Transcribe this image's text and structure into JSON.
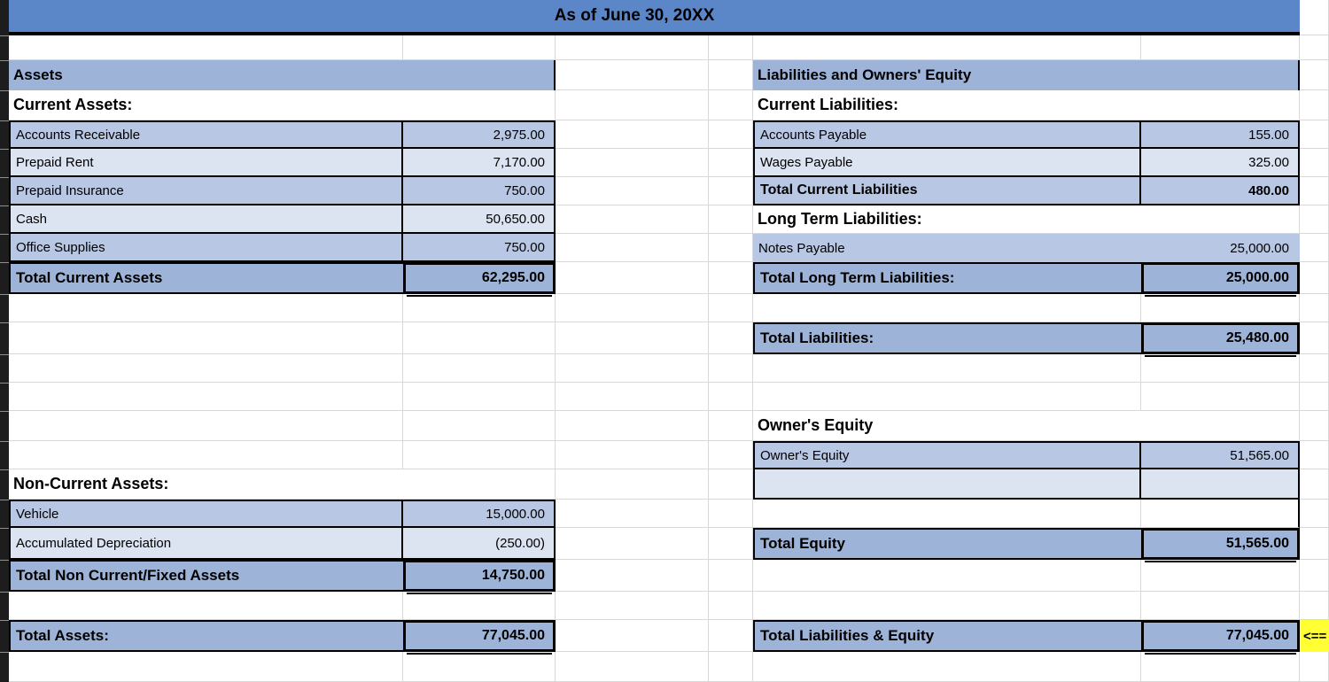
{
  "title": {
    "date_line": "As of June 30, 20XX"
  },
  "assets": {
    "section_header": "Assets",
    "current_header": "Current Assets:",
    "rows": [
      {
        "label": "Accounts Receivable",
        "value": "2,975.00"
      },
      {
        "label": "Prepaid Rent",
        "value": "7,170.00"
      },
      {
        "label": "Prepaid Insurance",
        "value": "750.00"
      },
      {
        "label": "Cash",
        "value": "50,650.00"
      },
      {
        "label": "Office Supplies",
        "value": "750.00"
      }
    ],
    "total_current": {
      "label": "Total Current Assets",
      "value": "62,295.00"
    },
    "noncurrent_header": "Non-Current Assets:",
    "noncurrent_rows": [
      {
        "label": "Vehicle",
        "value": "15,000.00"
      },
      {
        "label": "Accumulated Depreciation",
        "value": "(250.00)"
      }
    ],
    "total_noncurrent": {
      "label": "Total Non Current/Fixed Assets",
      "value": "14,750.00"
    },
    "total_assets": {
      "label": "Total Assets:",
      "value": "77,045.00"
    }
  },
  "liabilities_equity": {
    "section_header": "Liabilities and Owners' Equity",
    "current_header": "Current Liabilities:",
    "rows": [
      {
        "label": "Accounts Payable",
        "value": "155.00"
      },
      {
        "label": "Wages Payable",
        "value": "325.00"
      }
    ],
    "total_current": {
      "label": "Total Current Liabilities",
      "value": "480.00"
    },
    "longterm_header": "Long Term Liabilities:",
    "longterm_row": {
      "label": "Notes Payable",
      "value": "25,000.00"
    },
    "total_longterm": {
      "label": "Total Long Term Liabilities:",
      "value": "25,000.00"
    },
    "total_liabilities": {
      "label": "Total Liabilities:",
      "value": "25,480.00"
    },
    "equity_header": "Owner's Equity",
    "equity_row": {
      "label": "Owner's Equity",
      "value": "51,565.00"
    },
    "total_equity": {
      "label": "Total Equity",
      "value": "51,565.00"
    },
    "total_liab_equity": {
      "label": "Total Liabilities & Equity",
      "value": "77,045.00"
    }
  },
  "annotation": {
    "arrow": "<=="
  },
  "colors": {
    "title_bar": "#5b87c9",
    "section_fill": "#9db3d8",
    "row_dark": "#b8c7e3",
    "row_light": "#dce4f2",
    "highlight_yellow": "#ffff33"
  }
}
